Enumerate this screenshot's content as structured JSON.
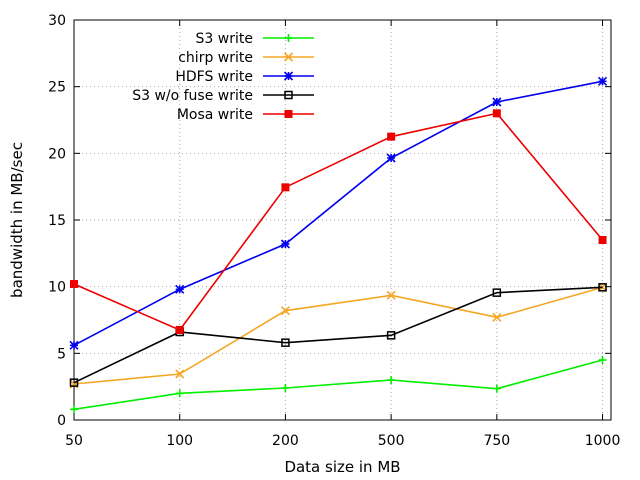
{
  "chart_data": {
    "type": "line",
    "xlabel": "Data size in MB",
    "ylabel": "bandwidth in MB/sec",
    "categories": [
      "50",
      "100",
      "200",
      "500",
      "750",
      "1000"
    ],
    "ylim": [
      0,
      30
    ],
    "yticks": [
      0,
      5,
      10,
      15,
      20,
      25,
      30
    ],
    "grid": true,
    "legend_position": "top-center",
    "series": [
      {
        "name": "S3 write",
        "color": "#00ee00",
        "marker": "plus",
        "values": [
          0.8,
          2.0,
          2.4,
          3.0,
          2.35,
          4.5
        ]
      },
      {
        "name": "chirp write",
        "color": "#f5a623",
        "marker": "x",
        "values": [
          2.7,
          3.45,
          8.2,
          9.35,
          7.7,
          9.95
        ]
      },
      {
        "name": "HDFS write",
        "color": "#0000ee",
        "marker": "star",
        "values": [
          5.6,
          9.8,
          13.2,
          19.65,
          23.85,
          25.4
        ]
      },
      {
        "name": "S3 w/o fuse write",
        "color": "#000000",
        "marker": "open-square",
        "values": [
          2.8,
          6.6,
          5.8,
          6.35,
          9.55,
          9.95
        ]
      },
      {
        "name": "Mosa write",
        "color": "#ee0000",
        "marker": "filled-square",
        "values": [
          10.2,
          6.75,
          17.45,
          21.25,
          23.0,
          13.5
        ]
      }
    ]
  }
}
